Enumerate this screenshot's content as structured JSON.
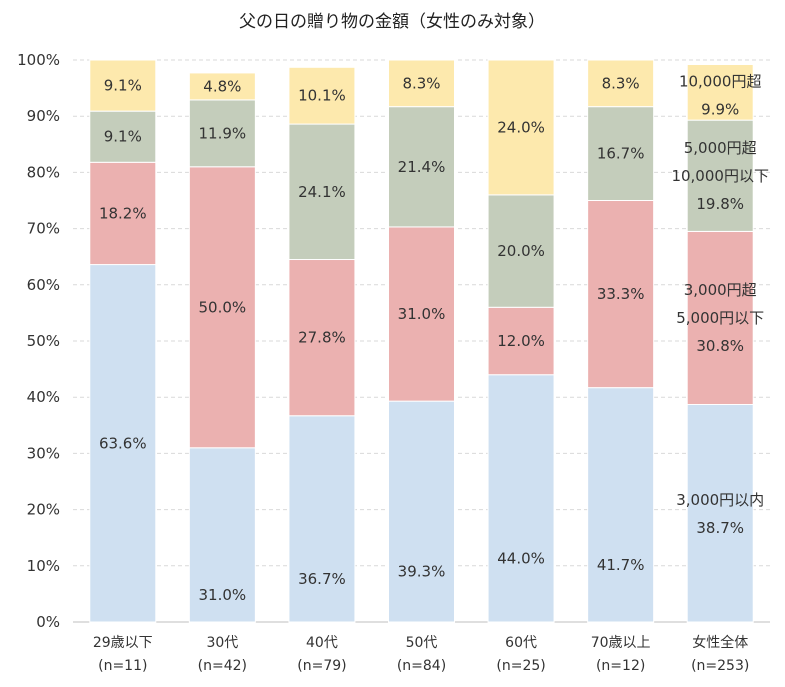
{
  "chart_data": {
    "type": "bar",
    "stacked": true,
    "title": "父の日の贈り物の金額（女性のみ対象）",
    "categories": [
      [
        "29歳以下",
        "(n=11)"
      ],
      [
        "30代",
        "(n=42)"
      ],
      [
        "40代",
        "(n=79)"
      ],
      [
        "50代",
        "(n=84)"
      ],
      [
        "60代",
        "(n=25)"
      ],
      [
        "70歳以上",
        "(n=12)"
      ],
      [
        "女性全体",
        "(n=253)"
      ]
    ],
    "ylim": [
      0,
      100
    ],
    "yticks": [
      "0%",
      "10%",
      "20%",
      "30%",
      "40%",
      "50%",
      "60%",
      "70%",
      "80%",
      "90%",
      "100%"
    ],
    "grid": true,
    "series": [
      {
        "name": [
          "3,000円以内"
        ],
        "color": "#cfe0f1",
        "values": [
          63.6,
          31.0,
          36.7,
          39.3,
          44.0,
          41.7,
          38.7
        ],
        "labels": [
          "63.6%",
          "31.0%",
          "36.7%",
          "39.3%",
          "44.0%",
          "41.7%",
          "38.7%"
        ]
      },
      {
        "name": [
          "3,000円超",
          "5,000円以下"
        ],
        "color": "#ebb1b0",
        "values": [
          18.2,
          50.0,
          27.8,
          31.0,
          12.0,
          33.3,
          30.8
        ],
        "labels": [
          "18.2%",
          "50.0%",
          "27.8%",
          "31.0%",
          "12.0%",
          "33.3%",
          "30.8%"
        ]
      },
      {
        "name": [
          "5,000円超",
          "10,000円以下"
        ],
        "color": "#c4cdbb",
        "values": [
          9.1,
          11.9,
          24.1,
          21.4,
          20.0,
          16.7,
          19.8
        ],
        "labels": [
          "9.1%",
          "11.9%",
          "24.1%",
          "21.4%",
          "20.0%",
          "16.7%",
          "19.8%"
        ]
      },
      {
        "name": [
          "10,000円超"
        ],
        "color": "#fde9ad",
        "values": [
          9.1,
          4.8,
          10.1,
          8.3,
          24.0,
          8.3,
          9.9
        ],
        "labels": [
          "9.1%",
          "4.8%",
          "10.1%",
          "8.3%",
          "24.0%",
          "8.3%",
          "9.9%"
        ]
      }
    ]
  }
}
